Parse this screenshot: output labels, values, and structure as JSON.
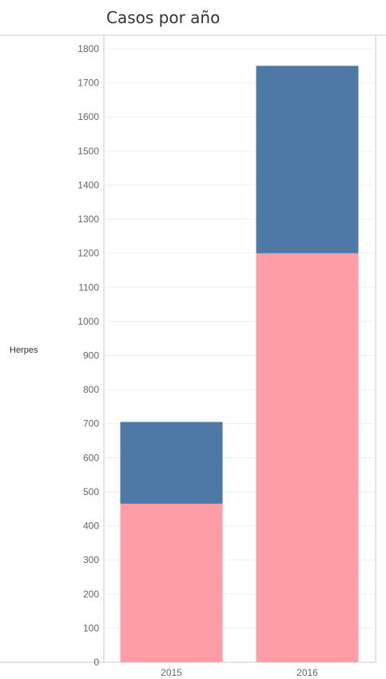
{
  "title": "Casos por año",
  "row_header": "Herpes",
  "colors": {
    "bottom": "#FF9DA7",
    "top": "#4E79A7",
    "grid": "#EEEEEE",
    "axis": "#CCCCCC"
  },
  "chart_data": {
    "type": "bar",
    "stacked": true,
    "title": "Casos por año",
    "categories": [
      "2015",
      "2016"
    ],
    "series": [
      {
        "values": [
          465,
          1200
        ]
      },
      {
        "values": [
          240,
          550
        ]
      }
    ],
    "ylim": [
      0,
      1800
    ],
    "yticks": [
      0,
      100,
      200,
      300,
      400,
      500,
      600,
      700,
      800,
      900,
      1000,
      1100,
      1200,
      1300,
      1400,
      1500,
      1600,
      1700,
      1800
    ],
    "grid": true
  }
}
